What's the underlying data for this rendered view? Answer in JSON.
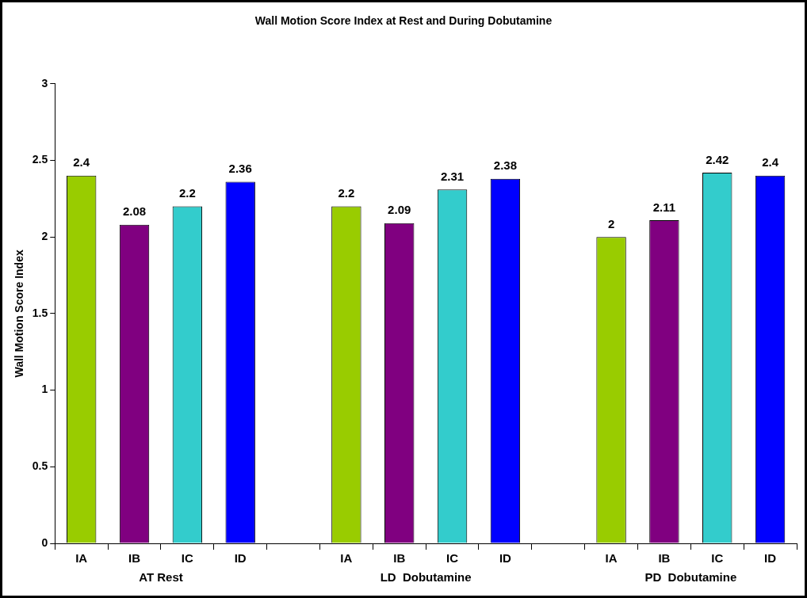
{
  "chart_data": {
    "type": "bar",
    "title": "Wall Motion Score Index at Rest and During Dobutamine",
    "ylabel": "Wall Motion Score Index",
    "categories": [
      "IA",
      "IB",
      "IC",
      "ID",
      null,
      "IA",
      "IB",
      "IC",
      "ID",
      null,
      "IA",
      "IB",
      "IC",
      "ID"
    ],
    "values": [
      2.4,
      2.08,
      2.2,
      2.36,
      null,
      2.2,
      2.09,
      2.31,
      2.38,
      null,
      2,
      2.11,
      2.42,
      2.4
    ],
    "colors": [
      "#99cc00",
      "#800080",
      "#33cccc",
      "#0000ff",
      null,
      "#99cc00",
      "#800080",
      "#33cccc",
      "#0000ff",
      null,
      "#99cc00",
      "#800080",
      "#33cccc",
      "#0000ff"
    ],
    "ylim": [
      0,
      3
    ],
    "yticks": [
      0,
      0.5,
      1,
      1.5,
      2,
      2.5,
      3
    ],
    "data_labels": true,
    "grid": false,
    "legend": false,
    "annotations": [
      "AT Rest",
      "LD  Dobutamine",
      "PD  Dobutamine"
    ]
  }
}
